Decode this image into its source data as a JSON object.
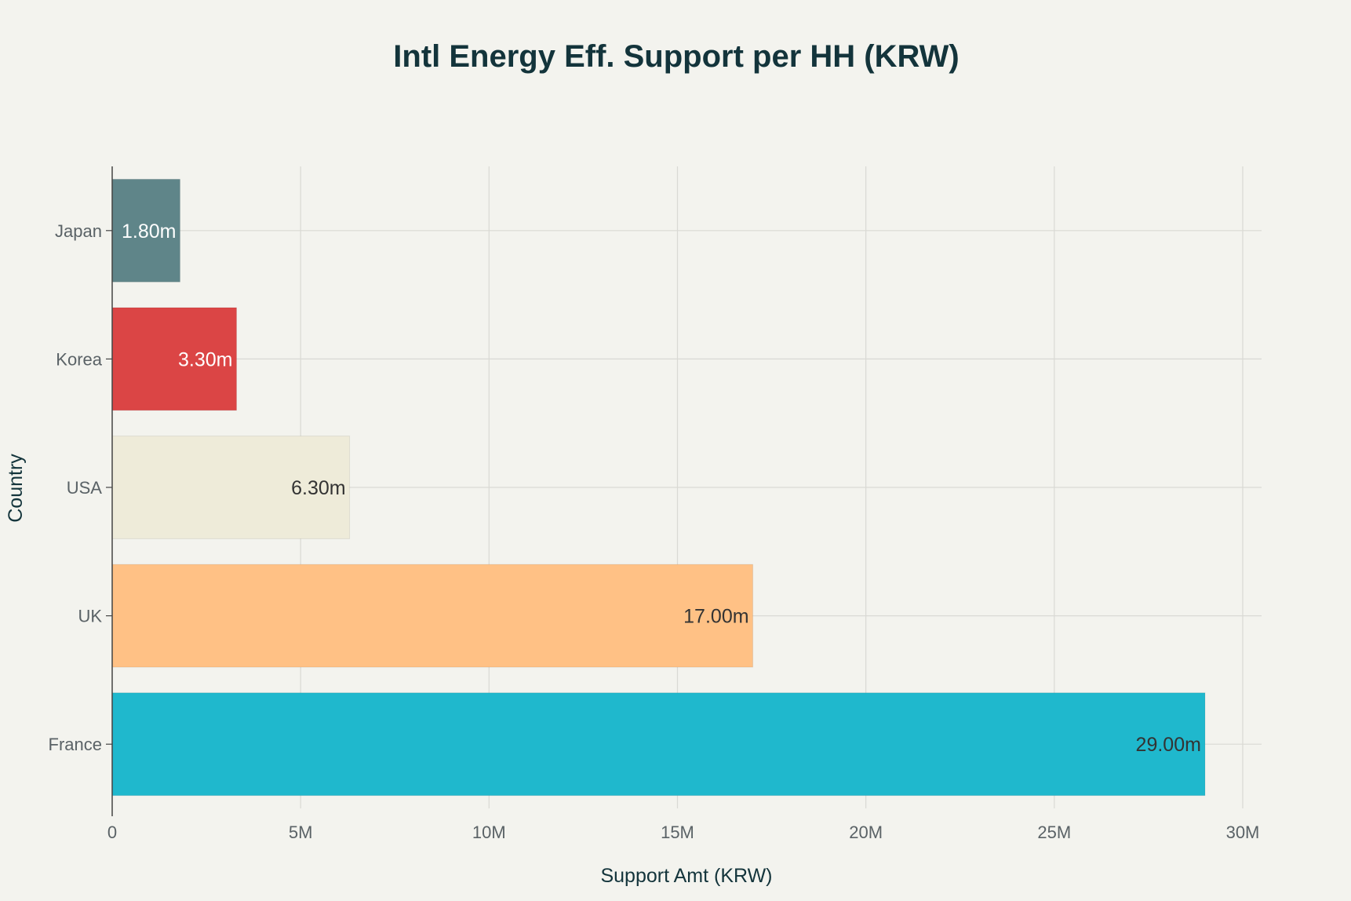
{
  "chart_data": {
    "type": "bar",
    "orientation": "horizontal",
    "title": "Intl Energy Eff. Support per HH (KRW)",
    "xlabel": "Support Amt (KRW)",
    "ylabel": "Country",
    "categories": [
      "Japan",
      "Korea",
      "USA",
      "UK",
      "France"
    ],
    "values": [
      1800000,
      3300000,
      6300000,
      17000000,
      29000000
    ],
    "data_labels": [
      "1.80m",
      "3.30m",
      "6.30m",
      "17.00m",
      "29.00m"
    ],
    "bar_colors": [
      "#5f8589",
      "#db4545",
      "#eeebd9",
      "#ffc185",
      "#1fb8cd"
    ],
    "label_colors": [
      "#ffffff",
      "#ffffff",
      "#333333",
      "#333333",
      "#333333"
    ],
    "xlim": [
      0,
      30500000
    ],
    "xticks": [
      0,
      5000000,
      10000000,
      15000000,
      20000000,
      25000000,
      30000000
    ],
    "xtick_labels": [
      "0",
      "5M",
      "10M",
      "15M",
      "20M",
      "25M",
      "30M"
    ],
    "grid": true,
    "legend": "none"
  },
  "colors": {
    "background": "#f3f3ee",
    "grid": "#d9d9d4",
    "axis": "#444444",
    "text": "#13343b",
    "tick_text": "#5a6266"
  }
}
